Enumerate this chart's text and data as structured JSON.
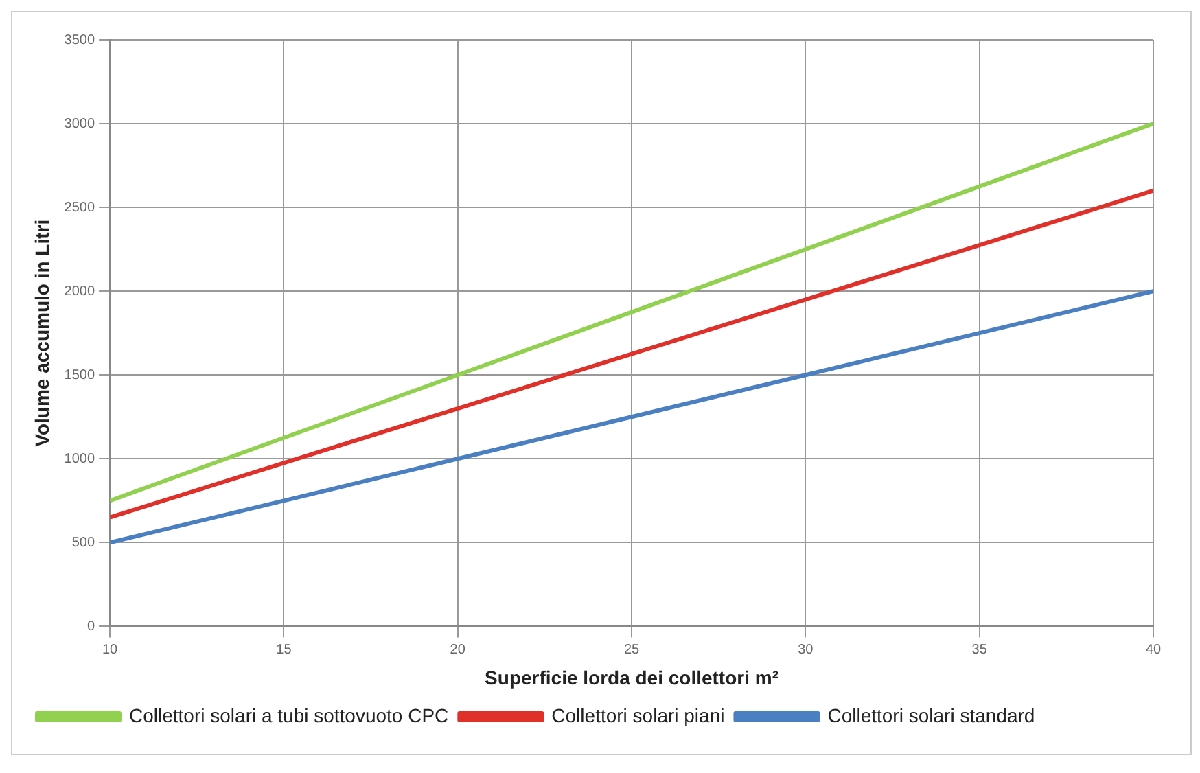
{
  "chart_data": {
    "type": "line",
    "xlabel": "Superficie lorda dei collettori m²",
    "ylabel": "Volume accumulo in Litri",
    "x": [
      10,
      15,
      20,
      25,
      30,
      35,
      40
    ],
    "series": [
      {
        "name": "Collettori solari a tubi sottovuoto CPC",
        "color": "#92d050",
        "values": [
          750,
          1125,
          1500,
          1875,
          2250,
          2625,
          3000
        ]
      },
      {
        "name": "Collettori solari piani",
        "color": "#e0302a",
        "values": [
          650,
          975,
          1300,
          1625,
          1950,
          2275,
          2600
        ]
      },
      {
        "name": "Collettori solari standard",
        "color": "#4a7fc1",
        "values": [
          500,
          750,
          1000,
          1250,
          1500,
          1750,
          2000
        ]
      }
    ],
    "xlim": [
      10,
      40
    ],
    "xticks": [
      10,
      15,
      20,
      25,
      30,
      35,
      40
    ],
    "ylim": [
      0,
      3500
    ],
    "yticks": [
      0,
      500,
      1000,
      1500,
      2000,
      2500,
      3000,
      3500
    ],
    "grid": true,
    "legend": "bottom",
    "marker": "none",
    "line_style": "solid"
  }
}
